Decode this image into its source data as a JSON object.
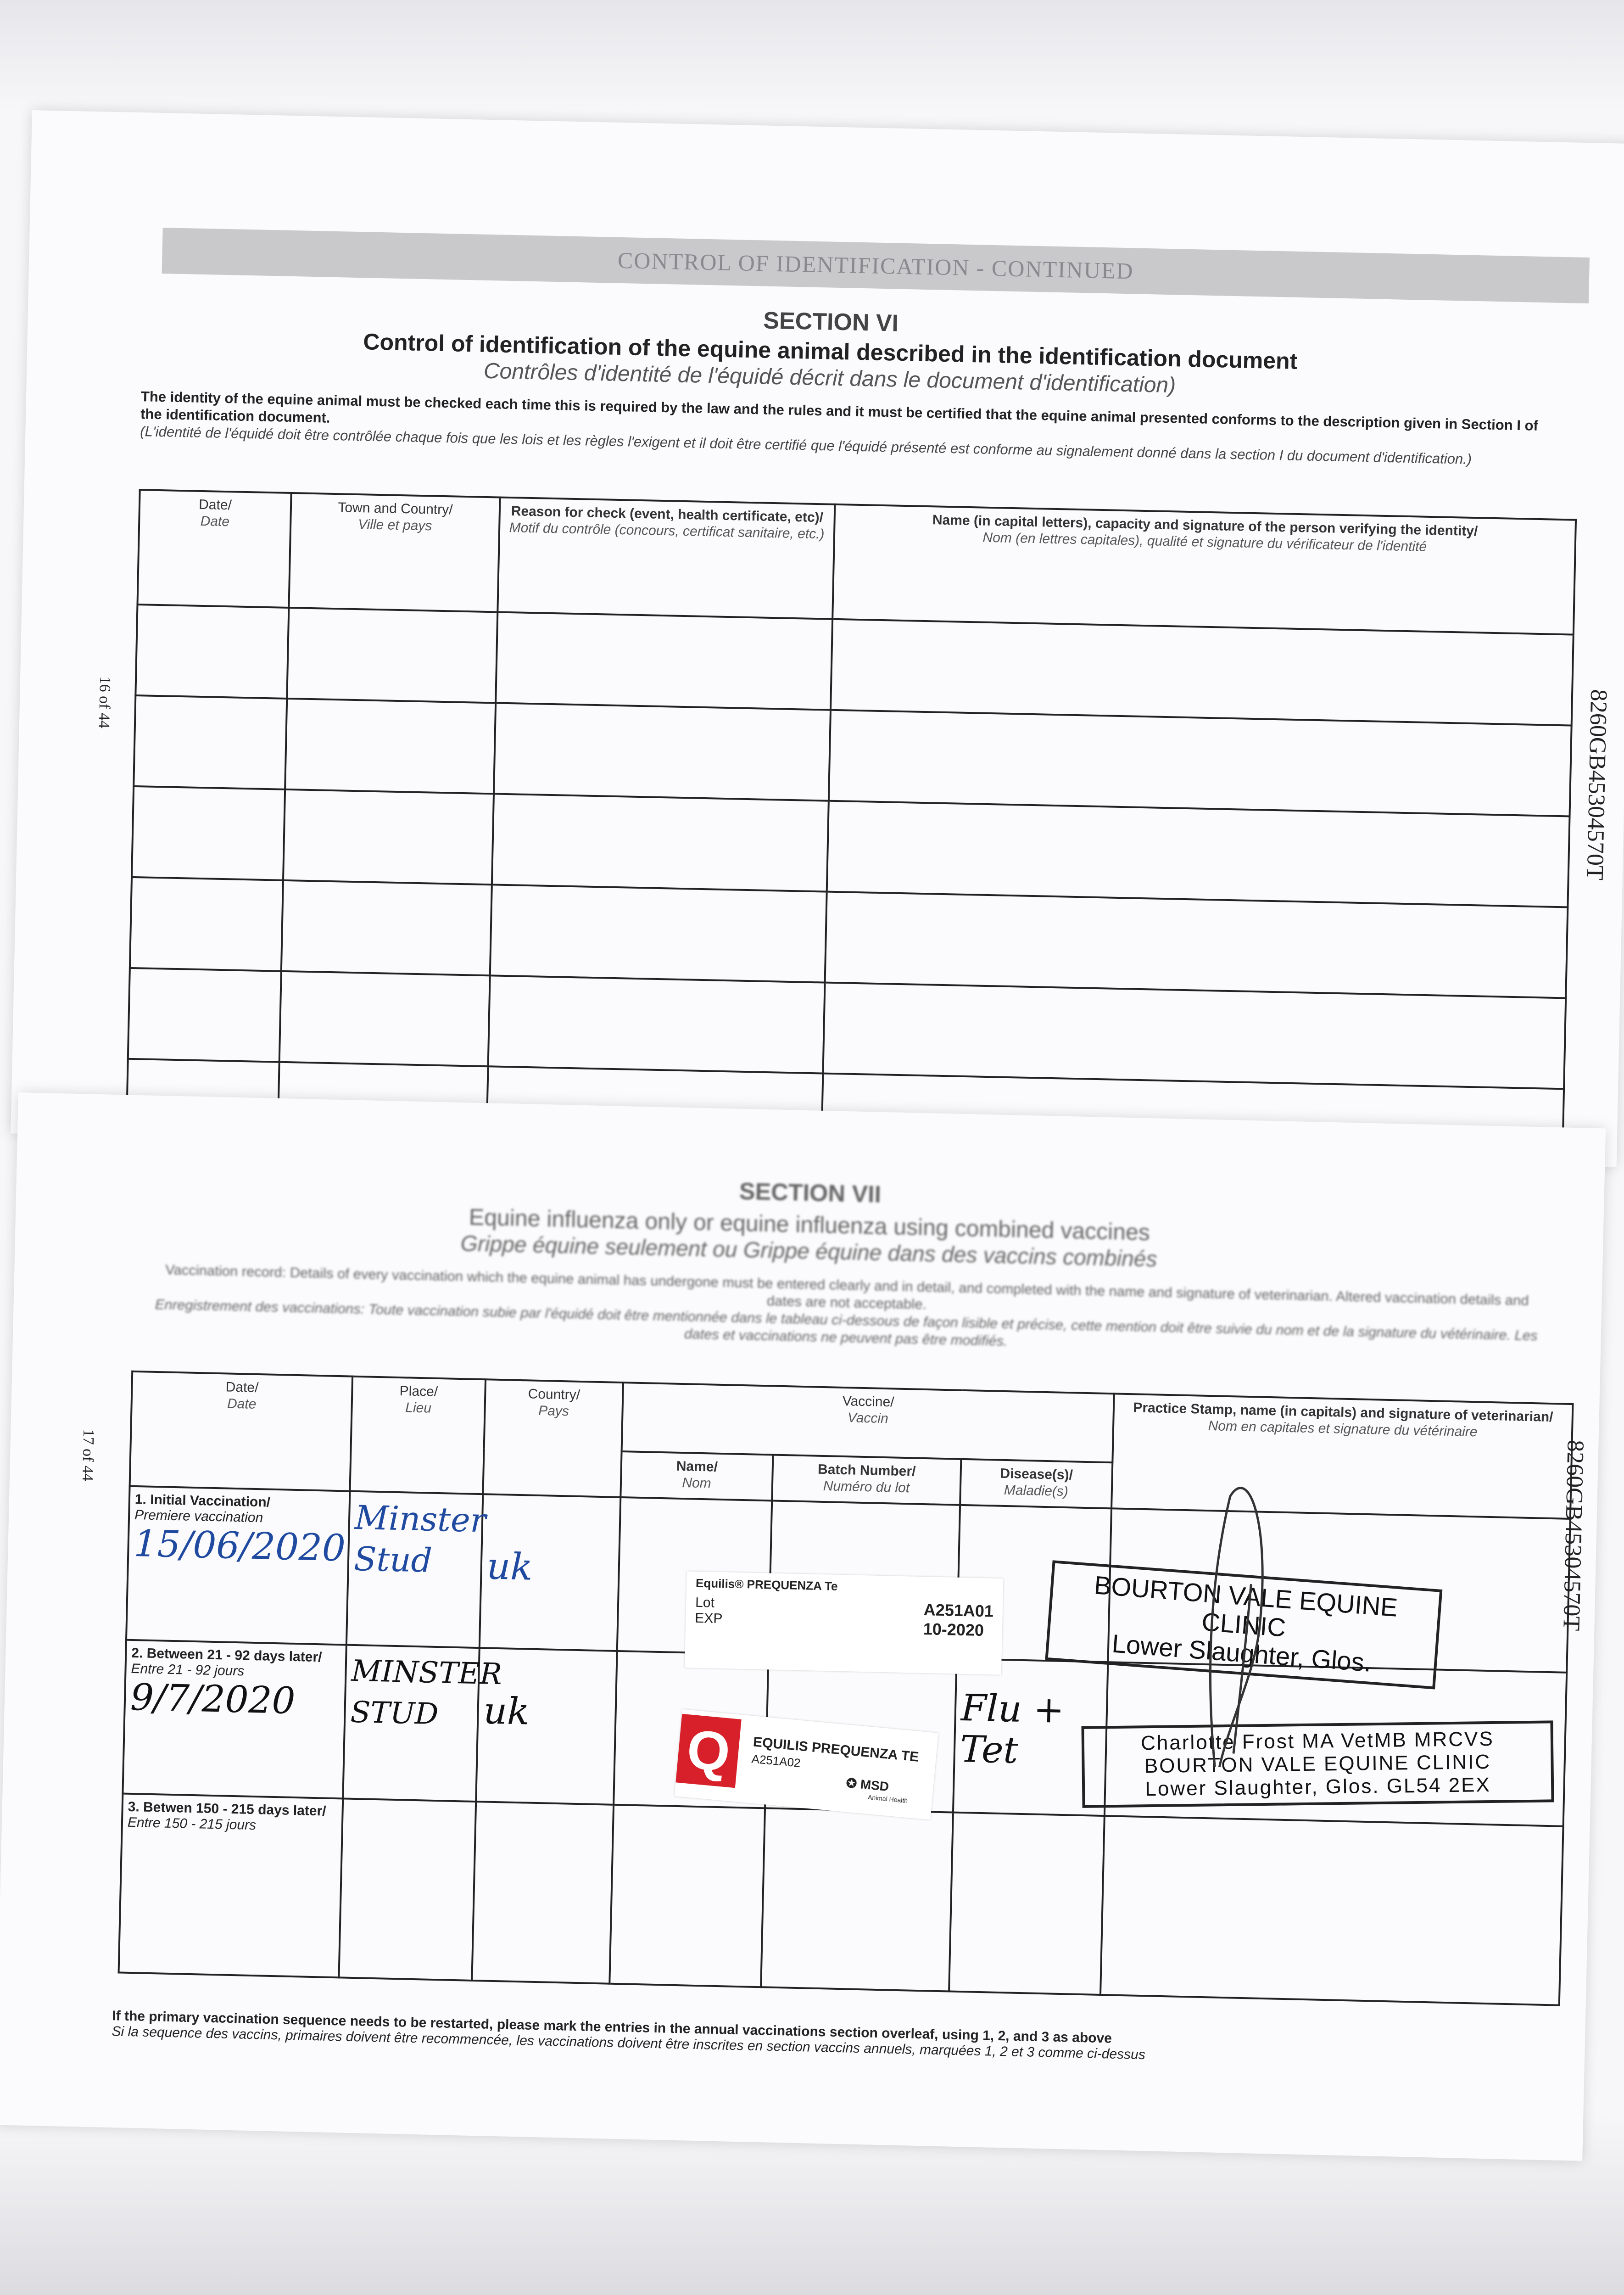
{
  "page16": {
    "page_number": "16 of 44",
    "doc_number": "8260GB45304570T",
    "band": "CONTROL OF IDENTIFICATION - CONTINUED",
    "section": "SECTION VI",
    "title": "Control of identification of the equine animal described in the identification document",
    "subtitle": "Contrôles d'identité de l'équidé décrit dans le document d'identification)",
    "para_en": "The identity of the equine animal must be checked each time this is required by the law and the rules and it must be certified that the equine animal presented conforms to the description given in Section I of the identification document.",
    "para_fr": "(L'identité de l'équidé doit être contrôlée chaque fois que les lois et les règles l'exigent et il doit être certifié que l'équidé présenté est conforme au signalement donné dans la section I du document d'identification.)",
    "headers": [
      {
        "en": "Date/",
        "fr": "Date"
      },
      {
        "en": "Town and Country/",
        "fr": "Ville et pays"
      },
      {
        "en": "Reason for check (event, health certificate, etc)/",
        "fr": "Motif du contrôle (concours, certificat sanitaire, etc.)"
      },
      {
        "en": "Name (in capital letters), capacity and signature of the person verifying the identity/",
        "fr": "Nom (en lettres capitales), qualité et signature du vérificateur de l'identité"
      }
    ]
  },
  "page17": {
    "page_number": "17 of 44",
    "doc_number": "8260GB45304570T",
    "section": "SECTION VII",
    "title": "Equine influenza only or equine influenza using combined vaccines",
    "subtitle": "Grippe équine seulement ou Grippe équine dans des vaccins combinés",
    "para_en": "Vaccination record: Details of every vaccination which the equine animal has undergone must be entered clearly and in detail, and completed with the name and signature of veterinarian. Altered vaccination details and dates are not acceptable.",
    "para_fr": "Enregistrement des vaccinations: Toute vaccination subie par l'équidé doit être mentionnée dans le tableau ci-dessous de façon lisible et précise, cette mention doit être suivie du nom et de la signature du vétérinaire. Les dates et vaccinations ne peuvent pas être modifiés.",
    "headers": {
      "date": {
        "en": "Date/",
        "fr": "Date"
      },
      "place": {
        "en": "Place/",
        "fr": "Lieu"
      },
      "country": {
        "en": "Country/",
        "fr": "Pays"
      },
      "vaccine": {
        "en": "Vaccine/",
        "fr": "Vaccin"
      },
      "name": {
        "en": "Name/",
        "fr": "Nom"
      },
      "batch": {
        "en": "Batch Number/",
        "fr": "Numéro du lot"
      },
      "disease": {
        "en": "Disease(s)/",
        "fr": "Maladie(s)"
      },
      "stamp": {
        "en": "Practice Stamp, name (in capitals) and signature of veterinarian/",
        "fr": "Nom en capitales et signature du vétérinaire"
      }
    },
    "rows": [
      {
        "label_en": "1. Initial Vaccination/",
        "label_fr": "Premiere vaccination",
        "date": "15/06/2020",
        "place": "Minster Stud",
        "country": "uk",
        "disease": ""
      },
      {
        "label_en": "2. Between 21 - 92 days later/",
        "label_fr": "Entre 21 - 92 jours",
        "date": "9/7/2020",
        "place": "MINSTER STUD",
        "country": "uk",
        "disease": "Flu + Tet"
      },
      {
        "label_en": "3. Betwen 150 - 215 days later/",
        "label_fr": "Entre 150 - 215 jours",
        "date": "",
        "place": "",
        "country": "",
        "disease": ""
      }
    ],
    "label1": {
      "product": "Equilis® PREQUENZA Te",
      "lot_label": "Lot",
      "exp_label": "EXP",
      "lot": "A251A01",
      "exp": "10-2020"
    },
    "label2": {
      "product": "EQUILIS PREQUENZA TE",
      "lot": "A251A02",
      "brand": "MSD",
      "brand_sub": "Animal Health",
      "logo_letter": "Q",
      "logo_color": "#d8202a"
    },
    "stamp1": {
      "line1": "BOURTON VALE EQUINE CLINIC",
      "line2": "Lower Slaughter, Glos."
    },
    "stamp2": {
      "line1": "Charlotte Frost MA VetMB MRCVS",
      "line2": "BOURTON VALE EQUINE CLINIC",
      "line3": "Lower Slaughter, Glos. GL54 2EX"
    },
    "footer_en": "If the primary vaccination sequence needs to be restarted, please mark the entries in the annual vaccinations section overleaf, using 1, 2, and 3 as above",
    "footer_fr": "Si la sequence des vaccins, primaires doivent être recommencée, les vaccinations doivent être inscrites en section vaccins annuels, marquées 1, 2 et 3 comme ci-dessus"
  }
}
